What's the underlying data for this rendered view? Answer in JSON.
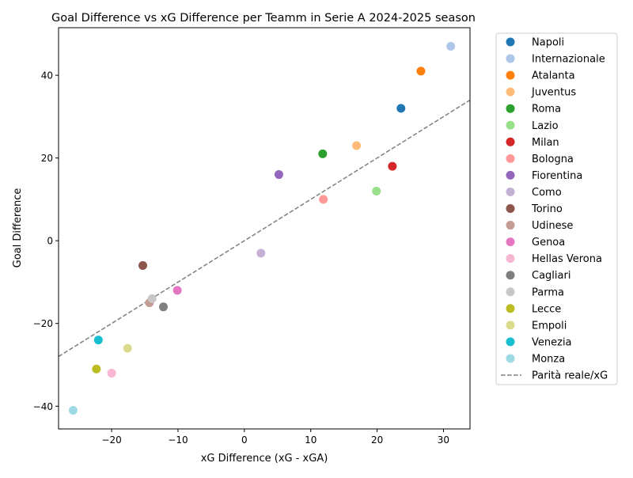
{
  "chart_data": {
    "type": "scatter",
    "title": "Goal Difference vs xG Difference per Teamm in Serie A 2024-2025 season",
    "xlabel": "xG Difference (xG - xGA)",
    "ylabel": "Goal Difference",
    "xlim": [
      -28,
      34
    ],
    "ylim": [
      -45.5,
      51.5
    ],
    "xticks": [
      -20,
      -10,
      0,
      10,
      20,
      30
    ],
    "yticks": [
      -40,
      -20,
      0,
      20,
      40
    ],
    "grid": false,
    "legend_position": "outside-right",
    "series": [
      {
        "name": "Napoli",
        "color": "#1f77b4",
        "x": 23.6,
        "y": 32
      },
      {
        "name": "Internazionale",
        "color": "#aec7e8",
        "x": 31.1,
        "y": 47
      },
      {
        "name": "Atalanta",
        "color": "#ff7f0e",
        "x": 26.6,
        "y": 41
      },
      {
        "name": "Juventus",
        "color": "#ffbb78",
        "x": 16.9,
        "y": 23
      },
      {
        "name": "Roma",
        "color": "#2ca02c",
        "x": 11.8,
        "y": 21
      },
      {
        "name": "Lazio",
        "color": "#98df8a",
        "x": 19.9,
        "y": 12
      },
      {
        "name": "Milan",
        "color": "#d62728",
        "x": 22.3,
        "y": 18
      },
      {
        "name": "Bologna",
        "color": "#ff9896",
        "x": 11.9,
        "y": 10
      },
      {
        "name": "Fiorentina",
        "color": "#9467bd",
        "x": 5.2,
        "y": 16
      },
      {
        "name": "Como",
        "color": "#c5b0d5",
        "x": 2.5,
        "y": -3
      },
      {
        "name": "Torino",
        "color": "#8c564b",
        "x": -15.3,
        "y": -6
      },
      {
        "name": "Udinese",
        "color": "#c49c94",
        "x": -14.3,
        "y": -15
      },
      {
        "name": "Genoa",
        "color": "#e377c2",
        "x": -10.1,
        "y": -12
      },
      {
        "name": "Hellas Verona",
        "color": "#f7b6d2",
        "x": -20.0,
        "y": -32
      },
      {
        "name": "Cagliari",
        "color": "#7f7f7f",
        "x": -12.2,
        "y": -16
      },
      {
        "name": "Parma",
        "color": "#c7c7c7",
        "x": -13.9,
        "y": -14
      },
      {
        "name": "Lecce",
        "color": "#bcbd22",
        "x": -22.3,
        "y": -31
      },
      {
        "name": "Empoli",
        "color": "#dbdb8d",
        "x": -17.6,
        "y": -26
      },
      {
        "name": "Venezia",
        "color": "#17becf",
        "x": -22.0,
        "y": -24
      },
      {
        "name": "Monza",
        "color": "#9edae5",
        "x": -25.8,
        "y": -41
      }
    ],
    "reference_line": {
      "label": "Parità reale/xG",
      "color": "#7f7f7f",
      "slope": 1,
      "intercept": 0
    }
  }
}
